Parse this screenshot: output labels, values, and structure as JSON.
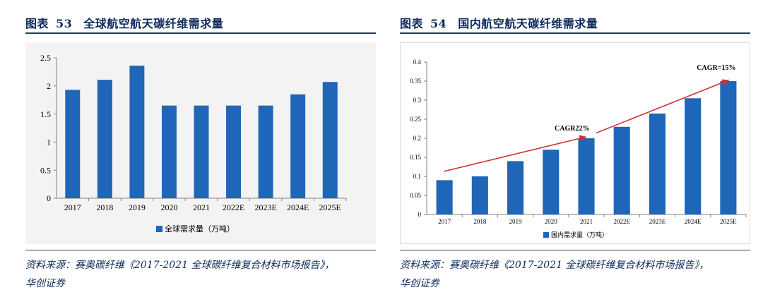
{
  "panels": [
    {
      "title_prefix": "图表",
      "title_number": "53",
      "title": "全球航空航天碳纤维需求量",
      "source_line1": "资料来源：赛奥碳纤维《2017-2021 全球碳纤维复合材料市场报告》，",
      "source_line2": "华创证券"
    },
    {
      "title_prefix": "图表",
      "title_number": "54",
      "title": "国内航空航天碳纤维需求量",
      "source_line1": "资料来源：赛奥碳纤维《2017-2021 全球碳纤维复合材料市场报告》，",
      "source_line2": "华创证券"
    }
  ],
  "chart_data": [
    {
      "type": "bar",
      "categories": [
        "2017",
        "2018",
        "2019",
        "2020",
        "2021",
        "2022E",
        "2023E",
        "2024E",
        "2025E"
      ],
      "series": [
        {
          "name": "全球需求量（万吨）",
          "values": [
            1.93,
            2.11,
            2.36,
            1.65,
            1.65,
            1.65,
            1.65,
            1.85,
            2.07
          ]
        }
      ],
      "ylim": [
        0,
        2.5
      ],
      "yticks": [
        "0",
        "0.5",
        "1",
        "1.5",
        "2",
        "2.5"
      ],
      "grid": false,
      "legend": "bottom",
      "color": "#1f66b8"
    },
    {
      "type": "bar",
      "categories": [
        "2017",
        "2018",
        "2019",
        "2020",
        "2021",
        "2022E",
        "2023E",
        "2024E",
        "2025E"
      ],
      "series": [
        {
          "name": "国内需求量（万吨）",
          "values": [
            0.09,
            0.1,
            0.14,
            0.17,
            0.2,
            0.23,
            0.265,
            0.305,
            0.35
          ]
        }
      ],
      "ylim": [
        0,
        0.4
      ],
      "yticks": [
        "0",
        "0.05",
        "0.1",
        "0.15",
        "0.2",
        "0.25",
        "0.3",
        "0.35",
        "0.4"
      ],
      "grid": false,
      "legend": "bottom",
      "color": "#1f66b8",
      "annotations": [
        "CAGR22%",
        "CAGR=15%"
      ],
      "trend_color": "#d0312d"
    }
  ]
}
